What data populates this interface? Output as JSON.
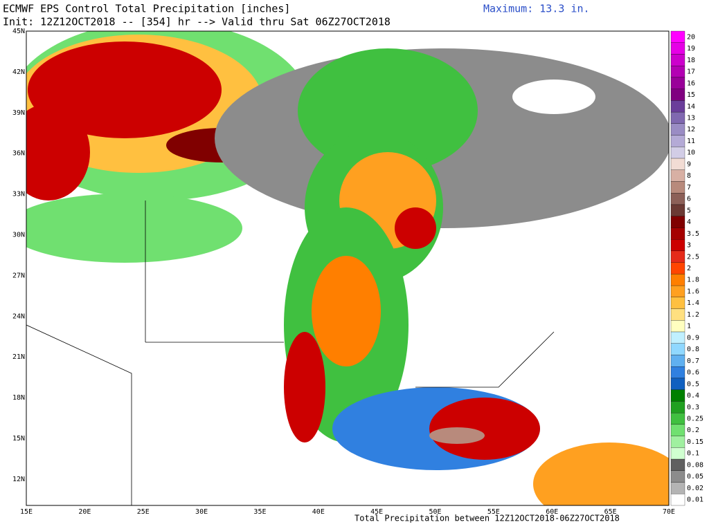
{
  "header": {
    "title": "ECMWF EPS Control Total Precipitation [inches]",
    "init": "Init: 12Z12OCT2018 -- [354] hr --> Valid thru Sat 06Z27OCT2018",
    "maximum": "Maximum: 13.3 in."
  },
  "map": {
    "lat_labels": [
      "45N",
      "42N",
      "39N",
      "36N",
      "33N",
      "30N",
      "27N",
      "24N",
      "21N",
      "18N",
      "15N",
      "12N"
    ],
    "lon_labels": [
      "15E",
      "20E",
      "25E",
      "30E",
      "35E",
      "40E",
      "45E",
      "50E",
      "55E",
      "60E",
      "65E",
      "70E"
    ]
  },
  "colorbar": {
    "levels": [
      20,
      19,
      18,
      17,
      16,
      15,
      14,
      13,
      12,
      11,
      10,
      9,
      8,
      7,
      6,
      5,
      4,
      3.5,
      3,
      2.5,
      2,
      1.8,
      1.6,
      1.4,
      1.2,
      1,
      0.9,
      0.8,
      0.7,
      0.6,
      0.5,
      0.4,
      0.3,
      0.25,
      0.2,
      0.15,
      0.1,
      0.08,
      0.05,
      0.02,
      0.01
    ],
    "colors": [
      "#ff00ff",
      "#e600e6",
      "#cc00cc",
      "#b300b3",
      "#990099",
      "#800080",
      "#6a3d9a",
      "#8068b0",
      "#9a8cc4",
      "#b4aad6",
      "#d2cde6",
      "#f2dcd4",
      "#d8b0a4",
      "#b88a7c",
      "#8c6058",
      "#6b3a34",
      "#800000",
      "#a50000",
      "#cc0000",
      "#e52b1a",
      "#ff4500",
      "#ff7f00",
      "#ffa020",
      "#ffc040",
      "#ffe080",
      "#ffffc0",
      "#c0f0ff",
      "#90d8ff",
      "#60b0f0",
      "#3080e0",
      "#1060c0",
      "#008000",
      "#20a020",
      "#40c040",
      "#70e070",
      "#a0f0a0",
      "#d0ffd0",
      "#606060",
      "#8c8c8c",
      "#b4b4b4",
      "#ffffff"
    ]
  },
  "footer": "Total Precipitation between 12Z12OCT2018-06Z27OCT2018"
}
